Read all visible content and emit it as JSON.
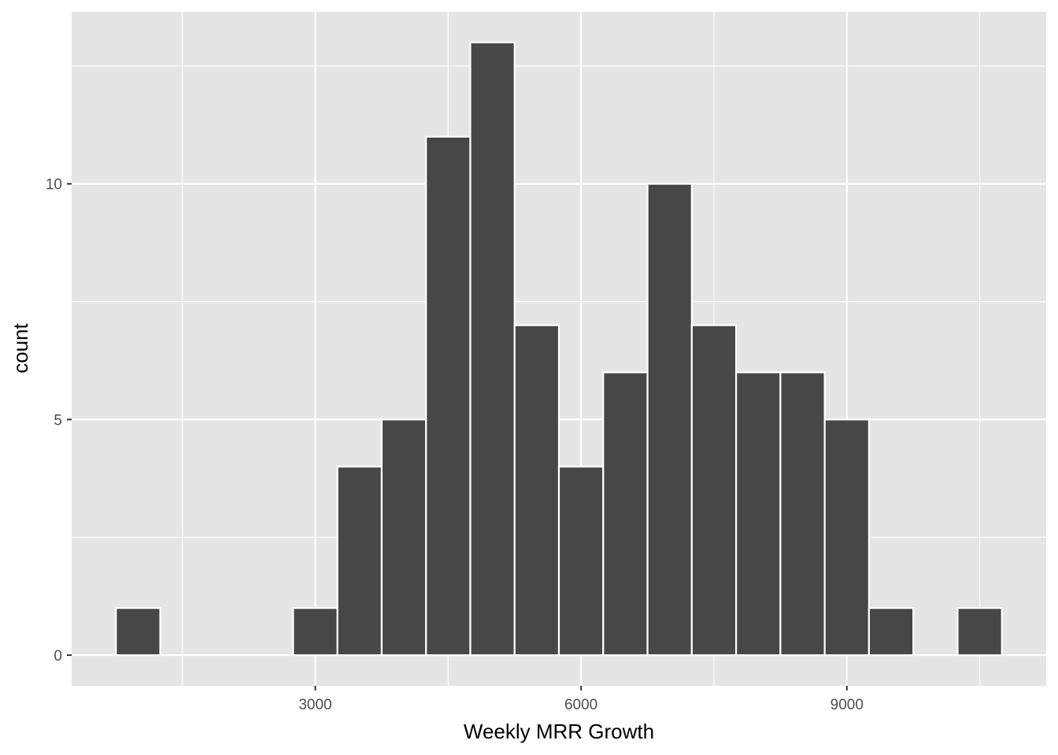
{
  "chart_data": {
    "type": "bar",
    "subtype": "histogram",
    "title": "",
    "xlabel": "Weekly MRR Growth",
    "ylabel": "count",
    "bin_width": 500,
    "bins": [
      {
        "x": 1000,
        "count": 1
      },
      {
        "x": 1500,
        "count": 0
      },
      {
        "x": 2000,
        "count": 0
      },
      {
        "x": 2500,
        "count": 0
      },
      {
        "x": 3000,
        "count": 1
      },
      {
        "x": 3500,
        "count": 4
      },
      {
        "x": 4000,
        "count": 5
      },
      {
        "x": 4500,
        "count": 11
      },
      {
        "x": 5000,
        "count": 13
      },
      {
        "x": 5500,
        "count": 7
      },
      {
        "x": 6000,
        "count": 4
      },
      {
        "x": 6500,
        "count": 6
      },
      {
        "x": 7000,
        "count": 10
      },
      {
        "x": 7500,
        "count": 7
      },
      {
        "x": 8000,
        "count": 6
      },
      {
        "x": 8500,
        "count": 6
      },
      {
        "x": 9000,
        "count": 5
      },
      {
        "x": 9500,
        "count": 1
      },
      {
        "x": 10000,
        "count": 0
      },
      {
        "x": 10500,
        "count": 1
      }
    ],
    "xlim": [
      250,
      11250
    ],
    "ylim": [
      -0.65,
      13.65
    ],
    "x_ticks": [
      3000,
      6000,
      9000
    ],
    "x_tick_labels": [
      "3000",
      "6000",
      "9000"
    ],
    "x_minor_gridlines": [
      1500,
      4500,
      7500,
      10500
    ],
    "y_ticks": [
      0,
      5,
      10
    ],
    "y_tick_labels": [
      "0",
      "5",
      "10"
    ],
    "y_minor_gridlines": [
      2.5,
      7.5,
      12.5
    ],
    "grid": true,
    "legend": "none",
    "colors": {
      "panel_background": "#e5e5e5",
      "grid": "#ffffff",
      "bar_fill": "#474747",
      "bar_outline": "#ffffff",
      "tick_label": "#4d4d4d",
      "tick_mark": "#333333",
      "axis_title": "#000000"
    }
  }
}
